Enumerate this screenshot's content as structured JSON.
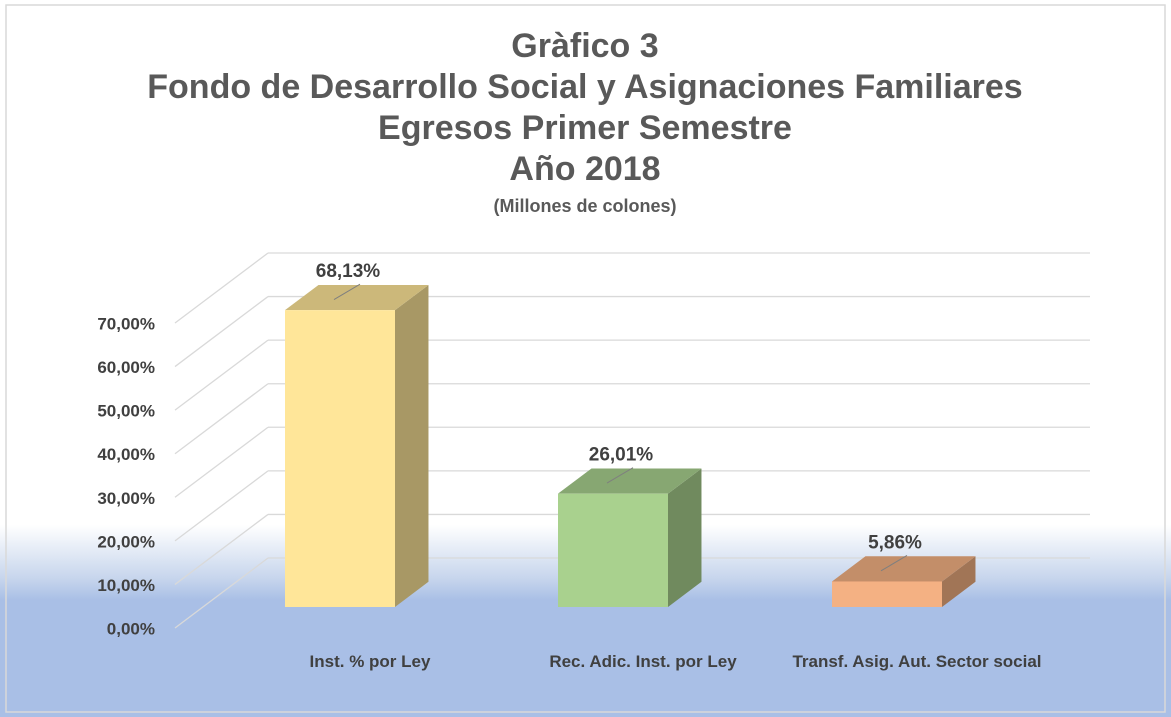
{
  "chart_data": {
    "type": "bar3d",
    "title": [
      "Gràfico 3",
      "Fondo de Desarrollo Social y Asignaciones Familiares",
      "Egresos Primer Semestre",
      "Año 2018"
    ],
    "subtitle": "(Millones de colones)",
    "categories": [
      "Inst. % por Ley",
      "Rec. Adic. Inst. por Ley",
      "Transf. Asig. Aut. Sector social"
    ],
    "values": [
      68.13,
      26.01,
      5.86
    ],
    "value_labels": [
      "68,13%",
      "26,01%",
      "5,86%"
    ],
    "colors": [
      "#ffe699",
      "#a9d18e",
      "#f4b183"
    ],
    "ylim": [
      0,
      70
    ],
    "yticks": [
      {
        "value": 0,
        "label": "0,00%"
      },
      {
        "value": 10,
        "label": "10,00%"
      },
      {
        "value": 20,
        "label": "20,00%"
      },
      {
        "value": 30,
        "label": "30,00%"
      },
      {
        "value": 40,
        "label": "40,00%"
      },
      {
        "value": 50,
        "label": "50,00%"
      },
      {
        "value": 60,
        "label": "60,00%"
      },
      {
        "value": 70,
        "label": "70,00%"
      }
    ],
    "grid": true
  }
}
